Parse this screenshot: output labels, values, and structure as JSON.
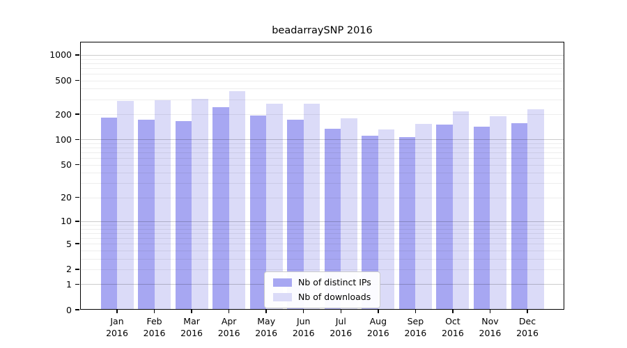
{
  "window": {
    "background": "#ffffff"
  },
  "chart_data": {
    "type": "bar",
    "title": "beadarraySNP 2016",
    "categories": [
      "Jan 2016",
      "Feb 2016",
      "Mar 2016",
      "Apr 2016",
      "May 2016",
      "Jun 2016",
      "Jul 2016",
      "Aug 2016",
      "Sep 2016",
      "Oct 2016",
      "Nov 2016",
      "Dec 2016"
    ],
    "series": [
      {
        "name": "Nb of distinct IPs",
        "color": "#a7a7f2",
        "values": [
          181,
          173,
          165,
          240,
          193,
          173,
          134,
          112,
          107,
          150,
          143,
          155
        ]
      },
      {
        "name": "Nb of downloads",
        "color": "#dbdbf8",
        "values": [
          287,
          295,
          305,
          373,
          265,
          265,
          178,
          132,
          152,
          216,
          189,
          227
        ]
      }
    ],
    "y_axis": {
      "scale": "log1p",
      "tick_labels": [
        0,
        1,
        2,
        5,
        10,
        20,
        50,
        100,
        200,
        500,
        1000
      ],
      "major_gridlines": [
        1,
        10,
        100,
        1000
      ],
      "minor_gridlines": [
        2,
        3,
        4,
        5,
        6,
        7,
        8,
        9,
        20,
        30,
        40,
        50,
        60,
        70,
        80,
        90,
        200,
        300,
        400,
        500,
        600,
        700,
        800,
        900
      ],
      "range": [
        0,
        1430
      ]
    },
    "x_axis": {
      "tick_label_lines": 2
    },
    "legend": {
      "position": "bottom-center"
    },
    "grid": true
  }
}
